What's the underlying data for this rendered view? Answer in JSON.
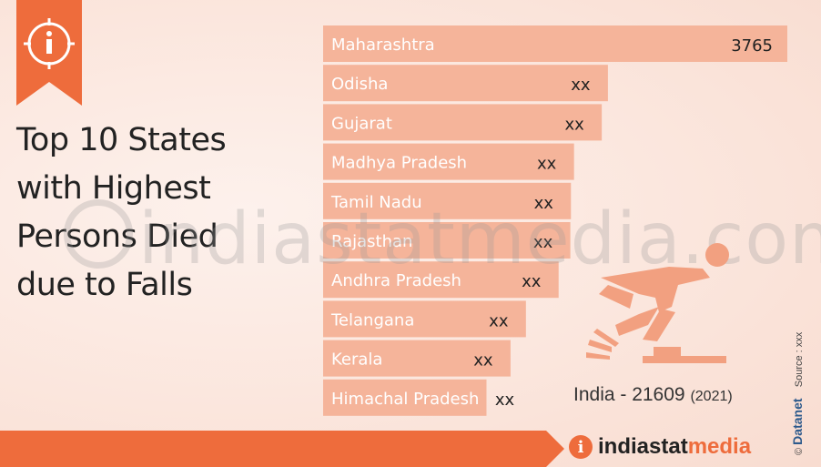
{
  "title_lines": [
    "Top 10 States",
    "with Highest",
    "Persons Died",
    "due to Falls"
  ],
  "watermark": "indiastatmedia.com",
  "india_total": {
    "label": "India - 21609",
    "year": "(2021)"
  },
  "logo": {
    "part1": "indiastat",
    "part2": "media"
  },
  "side_text": {
    "copyright": "©",
    "brand": "Datanet",
    "source": "Source : xxx"
  },
  "colors": {
    "accent": "#ee6c3c",
    "bar": "#f5b49a",
    "bar_border": "#ffffff"
  },
  "chart_data": {
    "type": "bar",
    "orientation": "horizontal",
    "title": "Top 10 States with Highest Persons Died due to Falls",
    "categories": [
      "Maharashtra",
      "Odisha",
      "Gujarat",
      "Madhya Pradesh",
      "Tamil Nadu",
      "Rajasthan",
      "Andhra Pradesh",
      "Telangana",
      "Kerala",
      "Himachal Pradesh"
    ],
    "values": [
      3765,
      2310,
      2260,
      2035,
      2010,
      2005,
      1910,
      1645,
      1520,
      1325
    ],
    "value_labels": [
      "3765",
      "xx",
      "xx",
      "xx",
      "xx",
      "xx",
      "xx",
      "xx",
      "xx",
      "xx"
    ],
    "xlim": [
      0,
      3765
    ]
  }
}
